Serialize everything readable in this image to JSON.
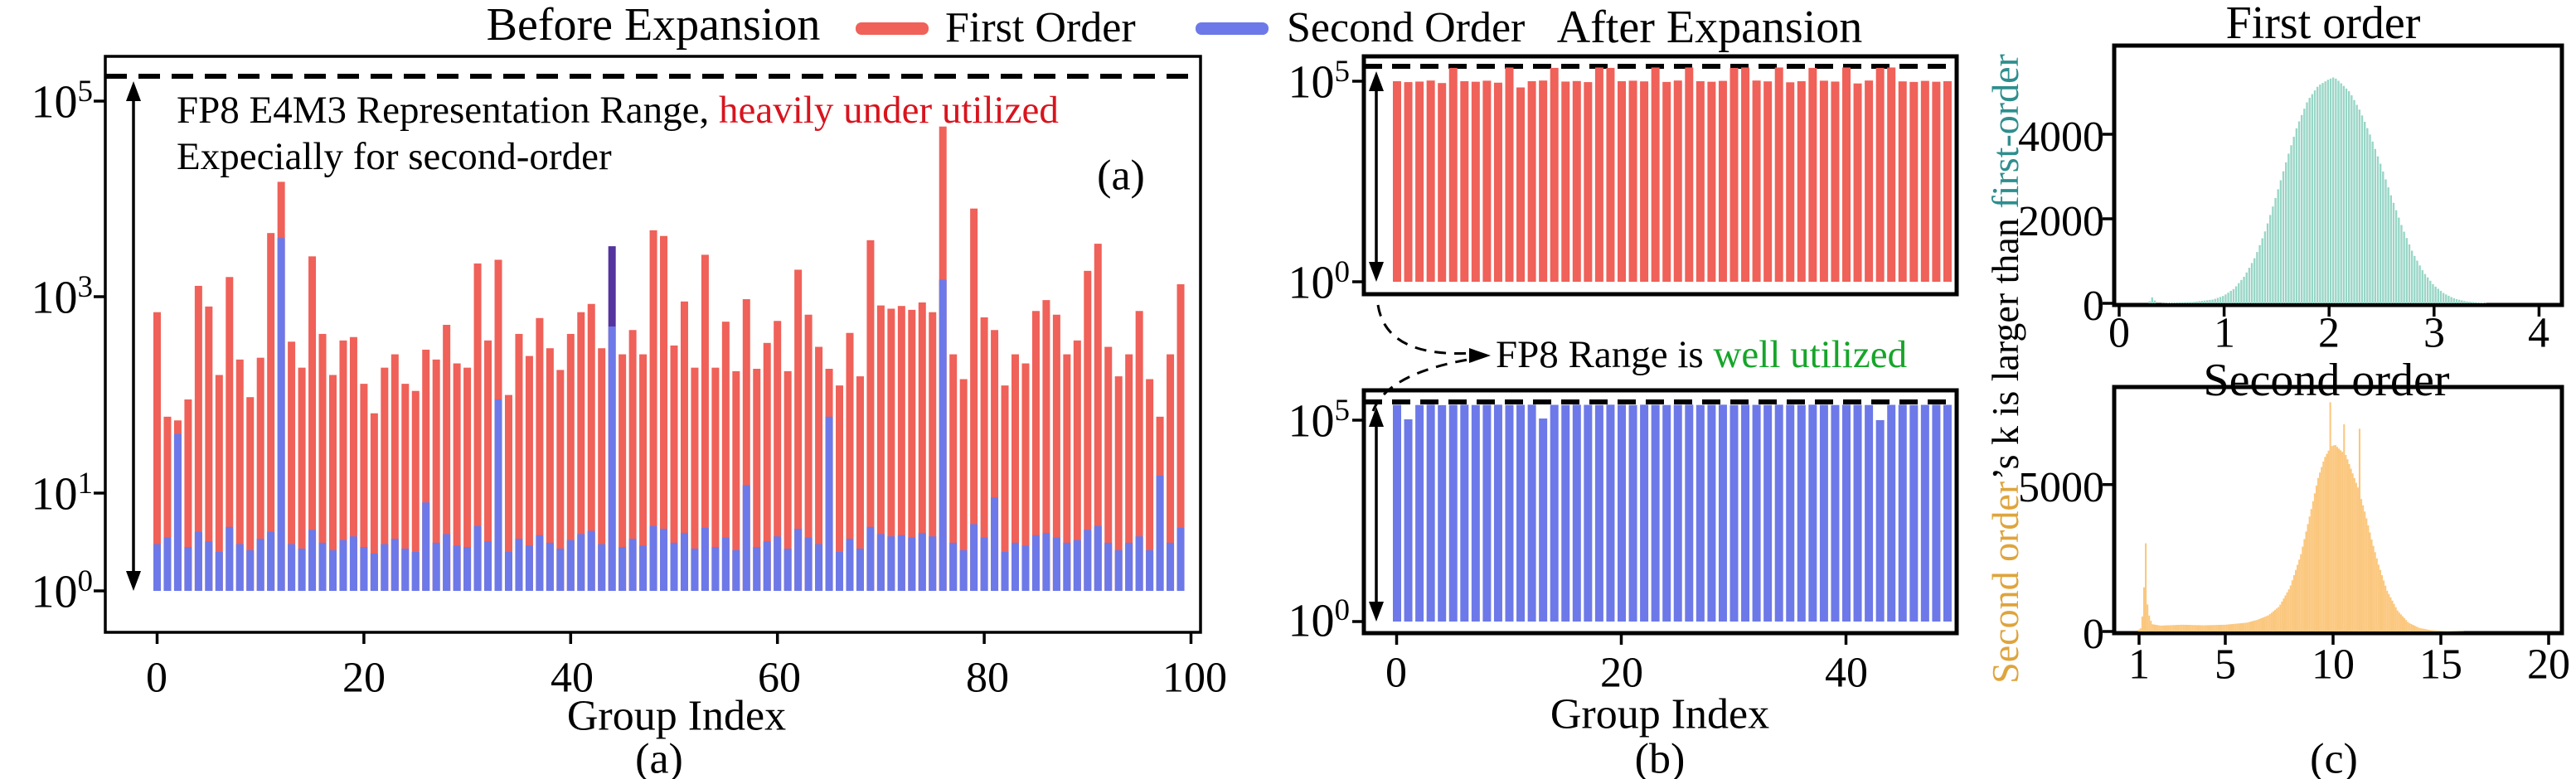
{
  "colors": {
    "first_order_bar": "#ef6159",
    "second_order_bar": "#6d79e8",
    "overlap_bar": "#54349e",
    "first_hist_fill": "#98d6c6",
    "second_hist_fill": "#fbc77e",
    "red_text": "#d8141e",
    "green_text": "#16a52a",
    "teal_text": "#2f8e8e",
    "orange_text": "#dfa43c",
    "axis_black": "#000000"
  },
  "legend": {
    "first": {
      "label": "First Order"
    },
    "second": {
      "label": "Second Order"
    }
  },
  "panel_a": {
    "title": "Before Expansion",
    "annotation_line1_black": "FP8 E4M3 Representation Range, ",
    "annotation_line1_red": "heavily under utilized",
    "annotation_line2": "Expecially for second-order",
    "corner_label": "(a)",
    "bottom_label": "(a)",
    "xlabel": "Group Index",
    "yticks": [
      {
        "base": "10",
        "exp": "5"
      },
      {
        "base": "10",
        "exp": "3"
      },
      {
        "base": "10",
        "exp": "1"
      },
      {
        "base": "10",
        "exp": "0"
      }
    ],
    "xticks": [
      "0",
      "20",
      "40",
      "60",
      "80",
      "100"
    ]
  },
  "panel_b": {
    "title": "After Expansion",
    "annotation_black": "FP8 Range is ",
    "annotation_green": "well utilized",
    "bottom_label": "(b)",
    "xlabel": "Group Index",
    "top_yticks": [
      {
        "base": "10",
        "exp": "5"
      },
      {
        "base": "10",
        "exp": "0"
      }
    ],
    "bottom_yticks": [
      {
        "base": "10",
        "exp": "5"
      },
      {
        "base": "10",
        "exp": "0"
      }
    ],
    "xticks": [
      "0",
      "20",
      "40"
    ]
  },
  "panel_c": {
    "top": {
      "title": "First order",
      "yticks": [
        "4000",
        "2000",
        "0"
      ],
      "xticks": [
        "0",
        "1",
        "2",
        "3",
        "4"
      ]
    },
    "bottom": {
      "title": "Second order",
      "yticks": [
        "5000",
        "0"
      ],
      "xticks": [
        "1",
        "5",
        "10",
        "15",
        "20"
      ]
    },
    "ylabel_orange": "Second order",
    "ylabel_black": "’s k is larger than ",
    "ylabel_teal": "first-order",
    "bottom_label": "(c)"
  },
  "chart_data": [
    {
      "id": "before_expansion",
      "type": "bar",
      "title": "Before Expansion",
      "xlabel": "Group Index",
      "yscale": "log",
      "ylim": [
        1,
        300000
      ],
      "xticks": [
        0,
        20,
        40,
        60,
        80,
        100
      ],
      "dashed_line_value": 180000,
      "legend_position": "top-center",
      "series": [
        {
          "name": "First Order",
          "color": "#ef6159",
          "values": [
            700,
            60,
            55,
            90,
            1300,
            800,
            160,
            1600,
            230,
            95,
            240,
            4500,
            15000,
            350,
            190,
            2600,
            420,
            160,
            360,
            390,
            130,
            65,
            190,
            260,
            130,
            110,
            290,
            230,
            520,
            210,
            190,
            2200,
            360,
            2400,
            100,
            420,
            250,
            610,
            300,
            180,
            420,
            700,
            850,
            300,
            500,
            260,
            460,
            260,
            4800,
            4200,
            320,
            900,
            190,
            2700,
            190,
            560,
            175,
            950,
            185,
            340,
            570,
            175,
            1900,
            660,
            310,
            185,
            125,
            430,
            155,
            3800,
            820,
            760,
            810,
            740,
            880,
            700,
            55000,
            260,
            145,
            8000,
            620,
            460,
            125,
            260,
            210,
            720,
            930,
            660,
            260,
            360,
            1850,
            3500,
            310,
            155,
            260,
            720,
            145,
            60,
            260,
            1350
          ]
        },
        {
          "name": "Second Order",
          "color": "#6d79e8",
          "values": [
            3,
            3.5,
            40,
            2.8,
            4,
            3.2,
            2.5,
            4.5,
            3,
            2.6,
            3.4,
            4,
            4000,
            3,
            2.7,
            4.2,
            3.1,
            2.6,
            3.3,
            3.6,
            2.8,
            2.4,
            3,
            3.4,
            2.7,
            2.5,
            8,
            3.1,
            3.8,
            2.9,
            2.8,
            4.6,
            3.2,
            90,
            2.5,
            3.4,
            2.9,
            3.7,
            3.1,
            2.7,
            3.3,
            3.8,
            4.1,
            3,
            3300,
            2.8,
            3.4,
            2.9,
            4.6,
            4.3,
            3.1,
            3.9,
            2.7,
            4.4,
            2.8,
            3.5,
            2.6,
            12,
            2.8,
            3.2,
            3.6,
            2.7,
            4.3,
            3.5,
            3,
            60,
            2.5,
            3.4,
            2.7,
            4.5,
            3.8,
            3.6,
            3.7,
            3.5,
            3.9,
            3.6,
            1500,
            3.1,
            2.6,
            4.8,
            3.5,
            9,
            2.5,
            3.1,
            2.9,
            3.7,
            3.9,
            3.5,
            3.1,
            3.3,
            4.2,
            4.6,
            3.1,
            2.6,
            3.1,
            3.6,
            2.6,
            15,
            3.1,
            4.4
          ]
        }
      ]
    },
    {
      "id": "after_expansion_first_order",
      "type": "bar",
      "title": "After Expansion",
      "yscale": "log",
      "ylim": [
        1,
        420000
      ],
      "dashed_line_value": 230000,
      "series": [
        {
          "name": "First Order",
          "color": "#ef6159",
          "values": [
            100000,
            95000,
            98000,
            104000,
            90000,
            215000,
            100000,
            97000,
            103000,
            92000,
            220000,
            70000,
            100000,
            104000,
            215000,
            98000,
            101000,
            95000,
            220000,
            215000,
            100000,
            103000,
            99000,
            220000,
            96000,
            104000,
            220000,
            100000,
            97000,
            102000,
            215000,
            220000,
            104000,
            99000,
            220000,
            94000,
            100000,
            215000,
            103000,
            98000,
            220000,
            88000,
            104000,
            215000,
            220000,
            99000,
            96000,
            102000,
            97000,
            100000
          ]
        }
      ]
    },
    {
      "id": "after_expansion_second_order",
      "type": "bar",
      "xlabel": "Group Index",
      "yscale": "log",
      "ylim": [
        1,
        420000
      ],
      "xticks": [
        0,
        20,
        40
      ],
      "dashed_line_value": 240000,
      "series": [
        {
          "name": "Second Order",
          "color": "#6d79e8",
          "values": [
            240000,
            105000,
            238000,
            242000,
            236000,
            240000,
            242000,
            238000,
            240000,
            242000,
            238000,
            240000,
            242000,
            110000,
            240000,
            238000,
            242000,
            240000,
            238000,
            242000,
            240000,
            238000,
            242000,
            240000,
            238000,
            240000,
            242000,
            238000,
            240000,
            242000,
            238000,
            242000,
            240000,
            238000,
            242000,
            240000,
            238000,
            242000,
            240000,
            238000,
            242000,
            240000,
            238000,
            100000,
            240000,
            242000,
            238000,
            240000,
            242000,
            240000
          ]
        }
      ]
    },
    {
      "id": "first_order_k_histogram",
      "type": "area",
      "title": "First order",
      "xlim": [
        0,
        4.2
      ],
      "ylim": [
        0,
        5600
      ],
      "yticks": [
        0,
        2000,
        4000
      ],
      "xticks": [
        0,
        1,
        2,
        3,
        4
      ],
      "bin": 0.025,
      "points": {
        "x": [
          0.28,
          0.32,
          0.36,
          0.7,
          0.9,
          1.0,
          1.1,
          1.2,
          1.3,
          1.4,
          1.5,
          1.6,
          1.7,
          1.8,
          1.9,
          2.0,
          2.05,
          2.1,
          2.2,
          2.3,
          2.4,
          2.5,
          2.6,
          2.7,
          2.8,
          2.9,
          3.0,
          3.1,
          3.2,
          3.3,
          3.4,
          3.5
        ],
        "y": [
          0,
          150,
          0,
          30,
          90,
          180,
          350,
          650,
          1100,
          1750,
          2550,
          3400,
          4200,
          4800,
          5150,
          5300,
          5350,
          5250,
          5000,
          4550,
          3950,
          3250,
          2500,
          1800,
          1200,
          750,
          430,
          230,
          110,
          50,
          20,
          5
        ]
      }
    },
    {
      "id": "second_order_k_histogram",
      "type": "area",
      "title": "Second order",
      "xlim": [
        0,
        20.4
      ],
      "ylim": [
        0,
        8300
      ],
      "yticks": [
        0,
        5000
      ],
      "xticks": [
        1,
        5,
        10,
        15,
        20
      ],
      "bin": 0.08,
      "spikes": [
        [
          1.3,
          3000
        ],
        [
          9.9,
          7800
        ],
        [
          10.55,
          7050
        ],
        [
          11.2,
          6900
        ]
      ],
      "points": {
        "x": [
          0.95,
          1.1,
          1.2,
          1.3,
          1.4,
          1.6,
          2,
          3,
          4,
          5,
          6,
          6.5,
          7,
          7.5,
          8,
          8.5,
          9,
          9.3,
          9.6,
          9.9,
          10.1,
          10.3,
          10.6,
          10.9,
          11.2,
          11.5,
          11.8,
          12.1,
          12.5,
          13,
          13.5,
          14,
          14.5,
          15,
          16
        ],
        "y": [
          40,
          120,
          900,
          2900,
          700,
          250,
          200,
          230,
          210,
          230,
          300,
          400,
          550,
          850,
          1500,
          2600,
          4200,
          5200,
          5900,
          6300,
          6350,
          6200,
          6000,
          5400,
          4800,
          4000,
          3100,
          2300,
          1400,
          700,
          300,
          120,
          50,
          20,
          5
        ]
      }
    }
  ]
}
